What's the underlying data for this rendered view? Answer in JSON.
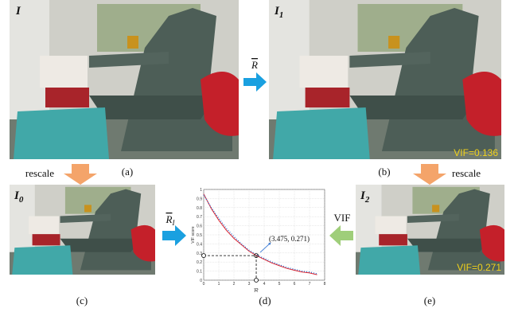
{
  "panels": [
    {
      "label": "I",
      "sub": "",
      "caption": "(a)"
    },
    {
      "label": "I",
      "sub": "1",
      "caption": "(b)",
      "vif": "VIF=0.136"
    },
    {
      "label": "I",
      "sub": "0",
      "caption": "(c)"
    },
    {
      "label": "I",
      "sub": "2",
      "caption": "(e)",
      "vif": "VIF=0.271"
    }
  ],
  "arrows": {
    "r_bar": "R",
    "rescale_left": "rescale",
    "rescale_right": "rescale",
    "r_bar_i": "R",
    "r_bar_i_sub": "I",
    "vif": "VIF"
  },
  "chart_data": {
    "type": "line",
    "caption": "(d)",
    "ylabel": "VIF score",
    "xlabel": "R",
    "xlim": [
      0,
      8
    ],
    "ylim": [
      0,
      1
    ],
    "xticks": [
      0,
      1,
      2,
      3,
      4,
      5,
      6,
      7,
      8
    ],
    "yticks": [
      0,
      0.1,
      0.2,
      0.3,
      0.4,
      0.5,
      0.6,
      0.7,
      0.8,
      0.9,
      1
    ],
    "grid": true,
    "x": [
      0,
      0.5,
      1,
      1.5,
      2,
      2.5,
      3,
      3.5,
      4,
      4.5,
      5,
      5.5,
      6,
      6.5,
      7,
      7.5
    ],
    "series": [
      {
        "color": "#e0202a",
        "style": "solid",
        "values": [
          0.95,
          0.79,
          0.66,
          0.55,
          0.46,
          0.39,
          0.32,
          0.27,
          0.23,
          0.19,
          0.16,
          0.13,
          0.11,
          0.09,
          0.08,
          0.06
        ]
      },
      {
        "color": "#2a6fd0",
        "style": "dotted",
        "values": [
          0.94,
          0.8,
          0.68,
          0.57,
          0.48,
          0.4,
          0.33,
          0.28,
          0.24,
          0.2,
          0.17,
          0.14,
          0.12,
          0.1,
          0.09,
          0.07
        ]
      }
    ],
    "highlight": {
      "x": 3.475,
      "y": 0.271,
      "label": "(3.475, 0.271)"
    }
  }
}
